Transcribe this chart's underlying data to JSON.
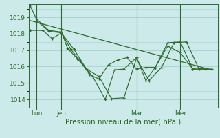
{
  "bg_color": "#cdeaea",
  "grid_color": "#a8cfcf",
  "line_color": "#2d6a2d",
  "title": "Pression niveau de la mer( hPa )",
  "ylabel_vals": [
    1014,
    1015,
    1016,
    1017,
    1018,
    1019
  ],
  "ylim": [
    1013.5,
    1019.8
  ],
  "xlim": [
    -0.5,
    60
  ],
  "xtick_labels": [
    "Lun",
    "Jeu",
    "Mar",
    "Mer"
  ],
  "xtick_positions": [
    2,
    10,
    34,
    48
  ],
  "vline_positions": [
    2,
    10,
    34,
    48
  ],
  "line1_x": [
    0,
    2,
    6,
    10,
    12,
    15,
    20,
    24,
    27,
    30,
    34,
    37,
    40,
    44,
    48,
    52,
    56
  ],
  "line1_y": [
    1019.7,
    1018.9,
    1018.2,
    1018.1,
    1017.1,
    1016.5,
    1015.4,
    1014.0,
    1015.8,
    1015.85,
    1016.55,
    1015.15,
    1015.95,
    1017.45,
    1017.5,
    1015.85,
    1015.85
  ],
  "line2_x": [
    0,
    4,
    7,
    10,
    13,
    16,
    19,
    22,
    25,
    28,
    31,
    34,
    37,
    40,
    44,
    48,
    52,
    56
  ],
  "line2_y": [
    1018.2,
    1018.2,
    1017.7,
    1018.05,
    1017.05,
    1016.35,
    1015.5,
    1015.25,
    1016.1,
    1016.4,
    1016.55,
    1015.85,
    1015.95,
    1015.95,
    1017.25,
    1016.85,
    1015.85,
    1015.85
  ],
  "line3_x": [
    2,
    6,
    10,
    14,
    18,
    22,
    26,
    30,
    34,
    38,
    42,
    46,
    50,
    54,
    58
  ],
  "line3_y": [
    1018.8,
    1018.15,
    1018.05,
    1017.05,
    1015.85,
    1015.4,
    1014.05,
    1014.1,
    1016.5,
    1015.15,
    1015.95,
    1017.45,
    1017.5,
    1015.85,
    1015.85
  ],
  "line4_x": [
    0,
    58
  ],
  "line4_y": [
    1018.8,
    1015.8
  ]
}
